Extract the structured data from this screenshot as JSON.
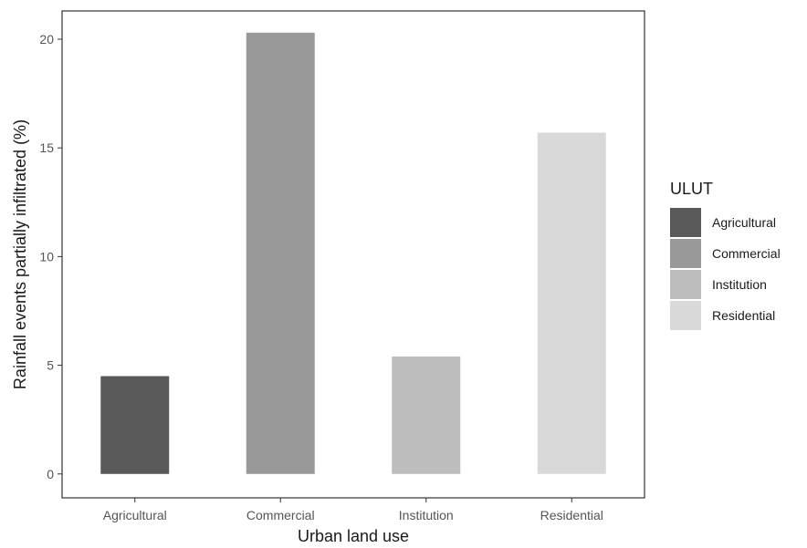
{
  "chart_data": {
    "type": "bar",
    "categories": [
      "Agricultural",
      "Commercial",
      "Institution",
      "Residential"
    ],
    "values": [
      4.5,
      20.3,
      5.4,
      15.7
    ],
    "colors": [
      "#595959",
      "#999999",
      "#bdbdbd",
      "#d9d9d9"
    ],
    "xlabel": "Urban land use",
    "ylabel": "Rainfall events partially infiltrated (%)",
    "ylim": [
      -1.1,
      21.3
    ],
    "yticks": [
      0,
      5,
      10,
      15,
      20
    ],
    "grid": false,
    "legend": {
      "title": "ULUT",
      "position": "right",
      "entries": [
        "Agricultural",
        "Commercial",
        "Institution",
        "Residential"
      ]
    }
  }
}
